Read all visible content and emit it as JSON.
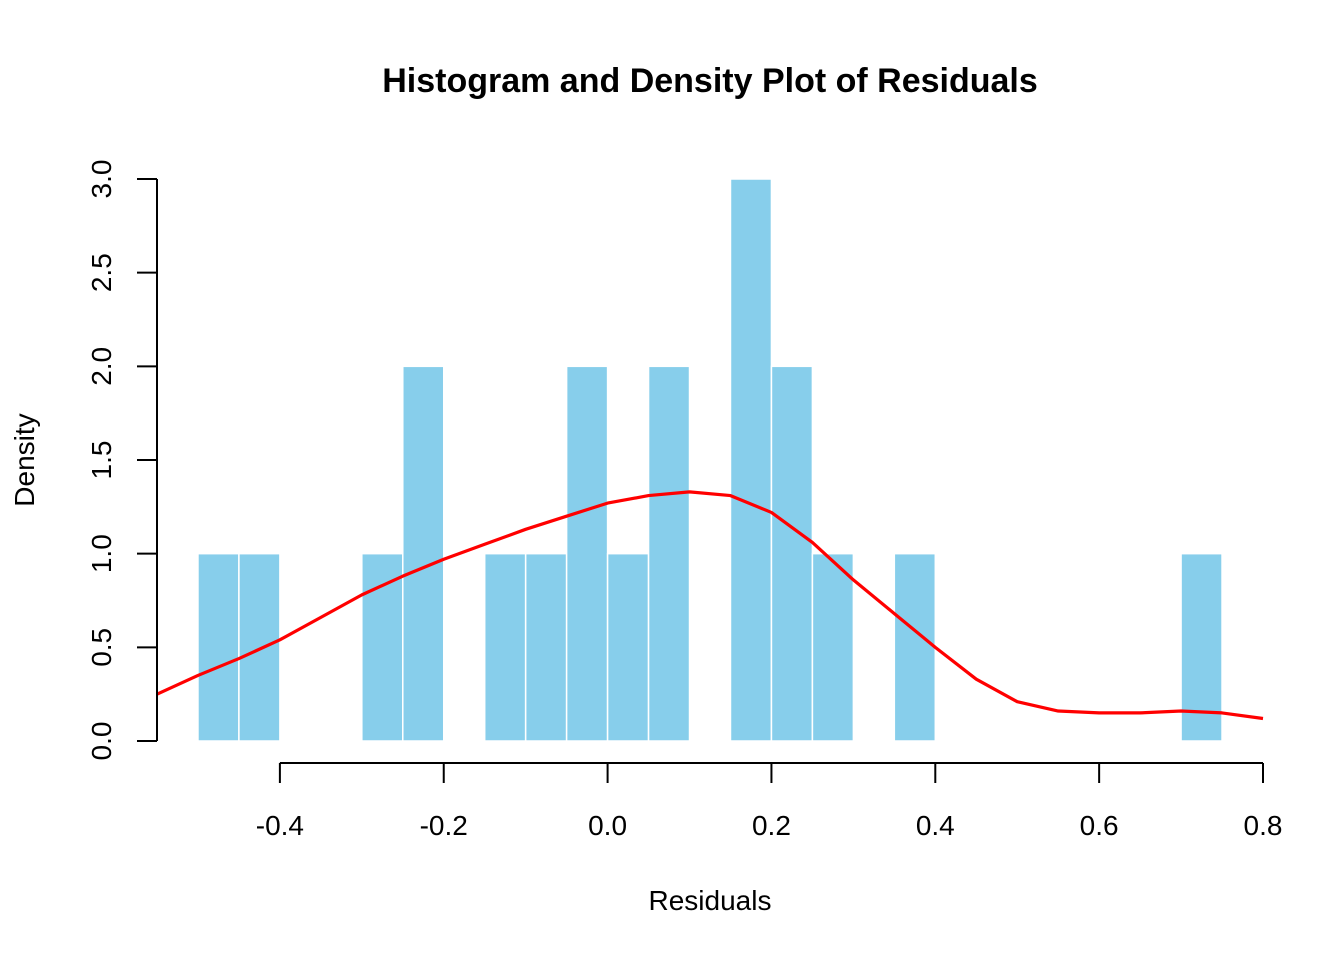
{
  "chart_data": {
    "type": "bar",
    "title": "Histogram and Density Plot of Residuals",
    "xlabel": "Residuals",
    "ylabel": "Density",
    "xlim": [
      -0.55,
      0.8
    ],
    "ylim": [
      0,
      3.0
    ],
    "xticks": [
      "-0.4",
      "-0.2",
      "0.0",
      "0.2",
      "0.4",
      "0.6",
      "0.8"
    ],
    "yticks": [
      "0.0",
      "0.5",
      "1.0",
      "1.5",
      "2.0",
      "2.5",
      "3.0"
    ],
    "bin_width": 0.05,
    "bins": [
      {
        "start": -0.5,
        "end": -0.45,
        "density": 1.0
      },
      {
        "start": -0.45,
        "end": -0.4,
        "density": 1.0
      },
      {
        "start": -0.3,
        "end": -0.25,
        "density": 1.0
      },
      {
        "start": -0.25,
        "end": -0.2,
        "density": 2.0
      },
      {
        "start": -0.15,
        "end": -0.1,
        "density": 1.0
      },
      {
        "start": -0.1,
        "end": -0.05,
        "density": 1.0
      },
      {
        "start": -0.05,
        "end": 0.0,
        "density": 2.0
      },
      {
        "start": 0.0,
        "end": 0.05,
        "density": 1.0
      },
      {
        "start": 0.05,
        "end": 0.1,
        "density": 2.0
      },
      {
        "start": 0.15,
        "end": 0.2,
        "density": 3.0
      },
      {
        "start": 0.2,
        "end": 0.25,
        "density": 2.0
      },
      {
        "start": 0.25,
        "end": 0.3,
        "density": 1.0
      },
      {
        "start": 0.35,
        "end": 0.4,
        "density": 1.0
      },
      {
        "start": 0.7,
        "end": 0.75,
        "density": 1.0
      }
    ],
    "density_curve": {
      "x": [
        -0.55,
        -0.5,
        -0.45,
        -0.4,
        -0.35,
        -0.3,
        -0.25,
        -0.2,
        -0.15,
        -0.1,
        -0.05,
        0.0,
        0.05,
        0.1,
        0.15,
        0.2,
        0.25,
        0.3,
        0.35,
        0.4,
        0.45,
        0.5,
        0.55,
        0.6,
        0.65,
        0.7,
        0.75,
        0.8
      ],
      "y": [
        0.25,
        0.35,
        0.44,
        0.54,
        0.66,
        0.78,
        0.88,
        0.97,
        1.05,
        1.13,
        1.2,
        1.27,
        1.31,
        1.33,
        1.31,
        1.22,
        1.06,
        0.86,
        0.68,
        0.5,
        0.33,
        0.21,
        0.16,
        0.15,
        0.15,
        0.16,
        0.15,
        0.12
      ]
    },
    "bar_color": "#87CEEB",
    "bar_border_color": "#FFFFFF",
    "line_color": "#FF0000",
    "grid": false,
    "legend": "none"
  }
}
